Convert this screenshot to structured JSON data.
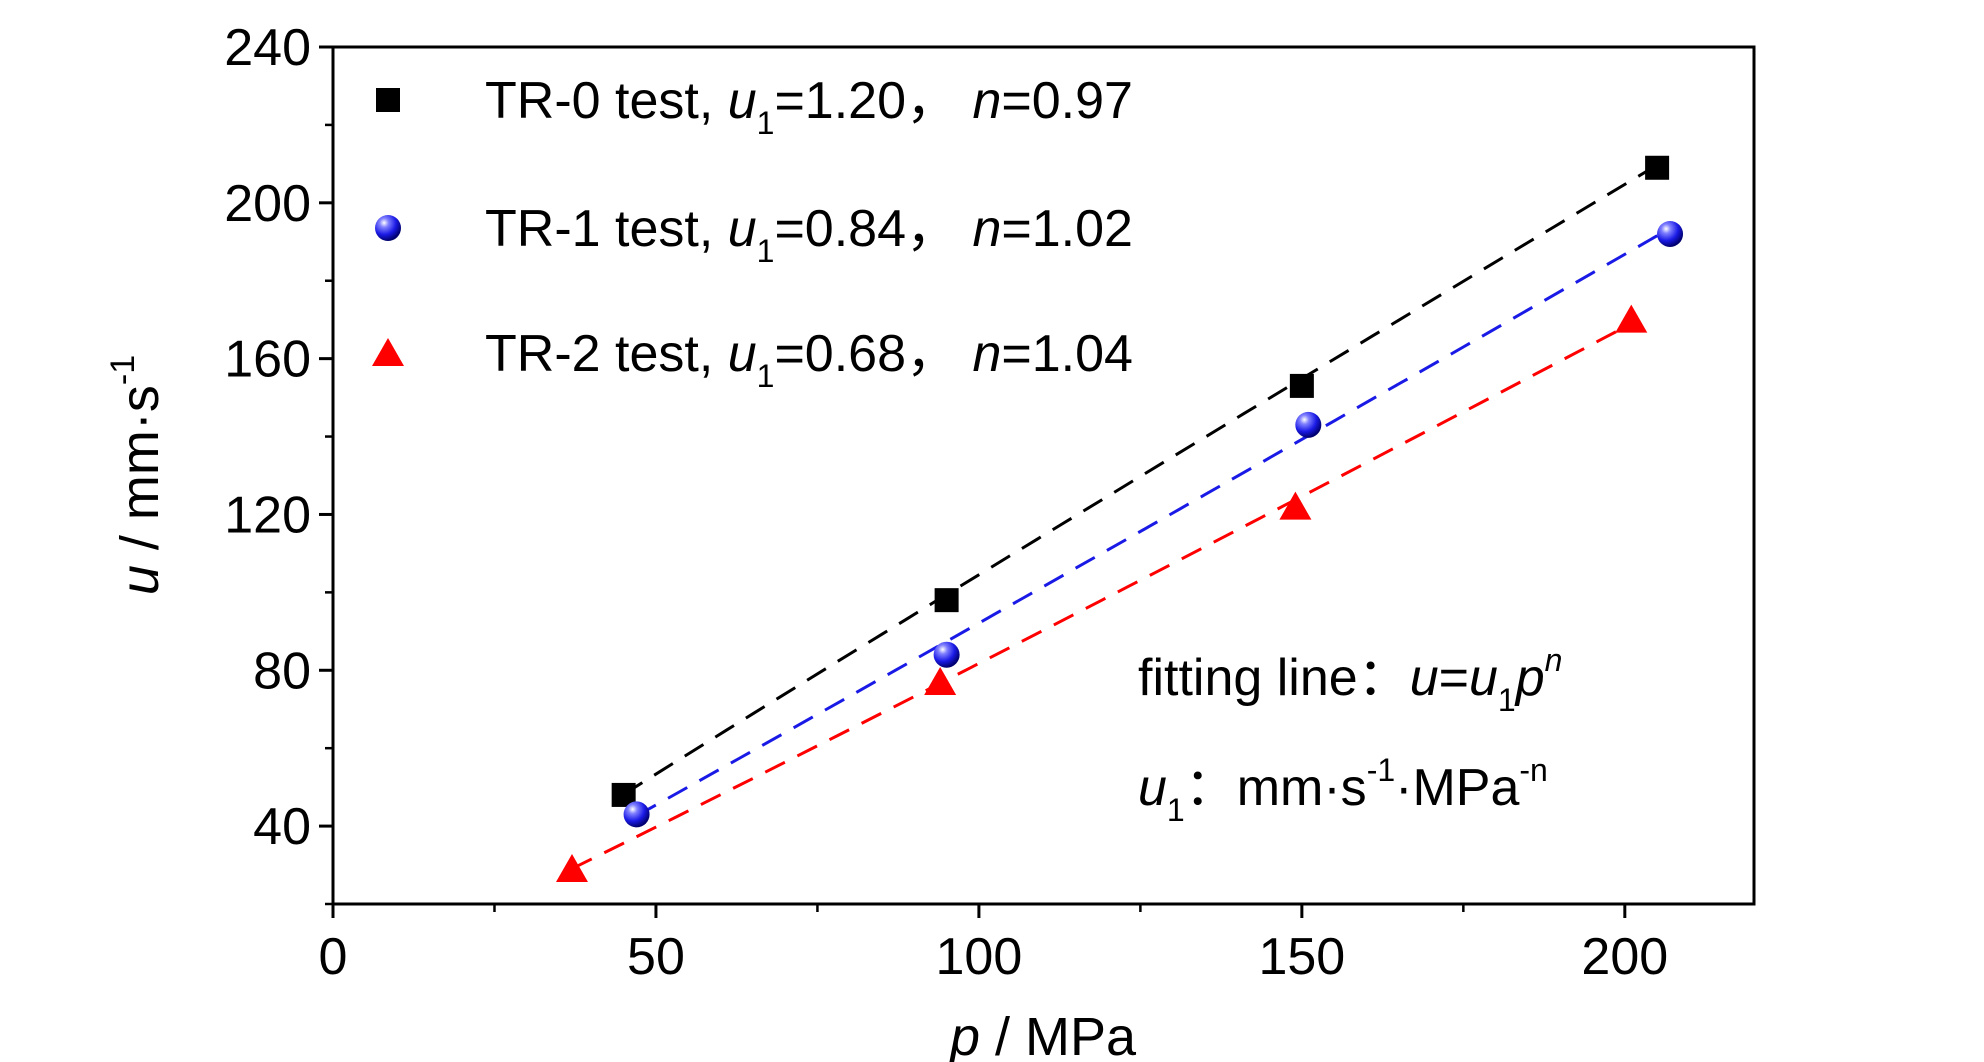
{
  "chart_data": {
    "type": "scatter",
    "xlabel": {
      "var": "p",
      "rest": " / MPa"
    },
    "ylabel": {
      "var": "u",
      "rest": " / mm·s",
      "sup": "-1"
    },
    "xlim": [
      0,
      220
    ],
    "ylim": [
      20,
      240
    ],
    "xticks": [
      0,
      50,
      100,
      150,
      200
    ],
    "yticks": [
      40,
      80,
      120,
      160,
      200,
      240
    ],
    "grid": false,
    "legend_position": "top-left",
    "series": [
      {
        "name": "TR-0 test",
        "u1": "1.20",
        "n": "0.97",
        "marker": "square",
        "color": "#000000",
        "x": [
          45,
          95,
          150,
          205
        ],
        "y": [
          48,
          98,
          153,
          209
        ],
        "fit_line": {
          "u1": 1.2,
          "n": 0.97,
          "x_range": [
            45,
            205
          ]
        }
      },
      {
        "name": "TR-1 test",
        "u1": "0.84",
        "n": "1.02",
        "marker": "sphere",
        "color": "#1a1ae6",
        "x": [
          47,
          95,
          151,
          207
        ],
        "y": [
          43,
          84,
          143,
          192
        ],
        "fit_line": {
          "u1": 0.84,
          "n": 1.02,
          "x_range": [
            47,
            207
          ]
        }
      },
      {
        "name": "TR-2 test",
        "u1": "0.68",
        "n": "1.04",
        "marker": "triangle",
        "color": "#ff0000",
        "x": [
          37,
          94,
          149,
          201
        ],
        "y": [
          29,
          77,
          122,
          170
        ],
        "fit_line": {
          "u1": 0.68,
          "n": 1.04,
          "x_range": [
            37,
            201
          ]
        }
      }
    ],
    "annotations": {
      "fit_label": "fitting line：",
      "fit_eq_u": "u",
      "fit_eq_eq": "=",
      "fit_eq_u1": "u",
      "fit_eq_sub": "1",
      "fit_eq_p": "p",
      "fit_eq_sup": "n",
      "unit_var": "u",
      "unit_sub": "1",
      "unit_colon": "：",
      "unit_text1": "mm·s",
      "unit_sup1": "-1",
      "unit_text2": "·MPa",
      "unit_sup2": "-n"
    },
    "legend_format": {
      "u_var": "u",
      "u_sub": "1",
      "sep": "，",
      "n_var": "n"
    }
  }
}
